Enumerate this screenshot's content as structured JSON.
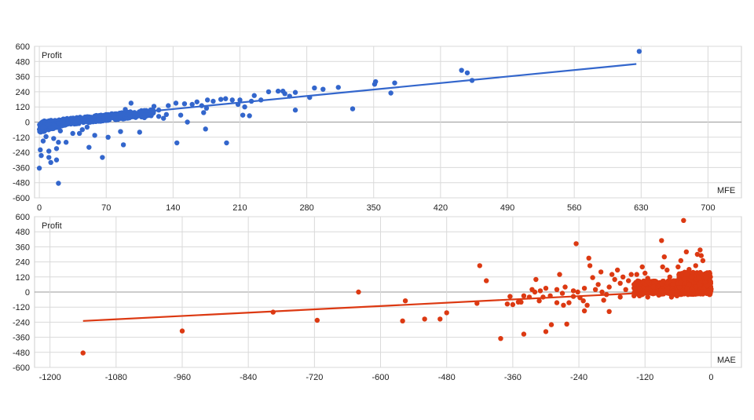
{
  "colors": {
    "mfe": "#3366cc",
    "mae": "#dc3912",
    "grid": "#d9d9d9",
    "axis": "#999999",
    "frame": "#cccccc"
  },
  "chart_data": [
    {
      "type": "scatter",
      "title": "",
      "xlabel": "MFE",
      "ylabel": "Profit",
      "xlim": [
        -5,
        735
      ],
      "ylim": [
        -600,
        600
      ],
      "xticks": [
        0,
        70,
        140,
        210,
        280,
        350,
        420,
        490,
        560,
        630,
        700
      ],
      "yticks": [
        -600,
        -480,
        -360,
        -240,
        -120,
        0,
        120,
        240,
        360,
        480,
        600
      ],
      "grid": true,
      "trendline": {
        "x": [
          0,
          625
        ],
        "y": [
          0,
          460
        ]
      },
      "outliers": [
        [
          628,
          560
        ],
        [
          442,
          410
        ],
        [
          448,
          390
        ],
        [
          453,
          330
        ],
        [
          372,
          310
        ],
        [
          352,
          320
        ],
        [
          368,
          230
        ],
        [
          351,
          300
        ],
        [
          328,
          105
        ],
        [
          313,
          275
        ],
        [
          297,
          260
        ],
        [
          288,
          270
        ],
        [
          283,
          195
        ],
        [
          268,
          235
        ],
        [
          268,
          95
        ],
        [
          262,
          205
        ],
        [
          257,
          225
        ],
        [
          255,
          245
        ],
        [
          250,
          245
        ],
        [
          240,
          240
        ],
        [
          232,
          175
        ],
        [
          225,
          210
        ],
        [
          222,
          165
        ],
        [
          215,
          120
        ],
        [
          213,
          55
        ],
        [
          210,
          175
        ],
        [
          208,
          140
        ],
        [
          220,
          50
        ],
        [
          195,
          185
        ],
        [
          190,
          180
        ],
        [
          202,
          175
        ],
        [
          182,
          165
        ],
        [
          176,
          175
        ],
        [
          175,
          110
        ],
        [
          172,
          75
        ],
        [
          170,
          130
        ],
        [
          165,
          160
        ],
        [
          160,
          140
        ],
        [
          152,
          145
        ],
        [
          148,
          55
        ],
        [
          155,
          0
        ],
        [
          143,
          150
        ],
        [
          135,
          130
        ],
        [
          130,
          30
        ],
        [
          125,
          95
        ],
        [
          120,
          125
        ],
        [
          110,
          35
        ],
        [
          100,
          70
        ],
        [
          96,
          150
        ],
        [
          90,
          100
        ],
        [
          88,
          -180
        ],
        [
          85,
          -75
        ],
        [
          78,
          45
        ],
        [
          72,
          -120
        ],
        [
          63,
          20
        ],
        [
          55,
          10
        ],
        [
          58,
          -105
        ],
        [
          50,
          -40
        ],
        [
          45,
          -60
        ],
        [
          52,
          -200
        ],
        [
          42,
          -90
        ],
        [
          35,
          -90
        ],
        [
          33,
          30
        ],
        [
          30,
          -10
        ],
        [
          28,
          -160
        ],
        [
          25,
          -20
        ],
        [
          22,
          -70
        ],
        [
          20,
          -160
        ],
        [
          18,
          -210
        ],
        [
          15,
          -130
        ],
        [
          13,
          -45
        ],
        [
          12,
          -320
        ],
        [
          10,
          -230
        ],
        [
          7,
          -115
        ],
        [
          4,
          -150
        ],
        [
          2,
          -265
        ],
        [
          1,
          -220
        ],
        [
          0,
          -365
        ],
        [
          18,
          -300
        ],
        [
          20,
          -485
        ],
        [
          10,
          -280
        ],
        [
          105,
          -80
        ],
        [
          144,
          -165
        ],
        [
          196,
          -165
        ],
        [
          174,
          -55
        ],
        [
          66,
          -280
        ],
        [
          125,
          45
        ],
        [
          133,
          60
        ],
        [
          110,
          90
        ]
      ],
      "bulk": [
        {
          "x0": 0,
          "x1": 120,
          "y0": -20,
          "y1": 100,
          "n": 520
        },
        {
          "x0": 0,
          "x1": 30,
          "y0": -60,
          "y1": 25,
          "n": 180
        }
      ]
    },
    {
      "type": "scatter",
      "title": "",
      "xlabel": "MAE",
      "ylabel": "Profit",
      "xlim": [
        -1228,
        55
      ],
      "ylim": [
        -600,
        600
      ],
      "xticks": [
        -1200,
        -1080,
        -960,
        -840,
        -720,
        -600,
        -480,
        -360,
        -240,
        -120,
        0
      ],
      "yticks": [
        -600,
        -480,
        -360,
        -240,
        -120,
        0,
        120,
        240,
        360,
        480,
        600
      ],
      "grid": true,
      "trendline": {
        "x": [
          -1140,
          0
        ],
        "y": [
          -230,
          20
        ]
      },
      "outliers": [
        [
          -1140,
          -485
        ],
        [
          -960,
          -310
        ],
        [
          -795,
          -160
        ],
        [
          -715,
          -225
        ],
        [
          -640,
          0
        ],
        [
          -555,
          -70
        ],
        [
          -560,
          -230
        ],
        [
          -520,
          -215
        ],
        [
          -492,
          -215
        ],
        [
          -480,
          -165
        ],
        [
          -420,
          210
        ],
        [
          -425,
          -90
        ],
        [
          -408,
          90
        ],
        [
          -382,
          -370
        ],
        [
          -370,
          -95
        ],
        [
          -365,
          -35
        ],
        [
          -360,
          -100
        ],
        [
          -350,
          -80
        ],
        [
          -340,
          -335
        ],
        [
          -345,
          -80
        ],
        [
          -330,
          -40
        ],
        [
          -325,
          20
        ],
        [
          -318,
          100
        ],
        [
          -312,
          -70
        ],
        [
          -310,
          10
        ],
        [
          -305,
          -40
        ],
        [
          -300,
          -315
        ],
        [
          -292,
          -30
        ],
        [
          -290,
          -260
        ],
        [
          -280,
          20
        ],
        [
          -275,
          140
        ],
        [
          -280,
          -85
        ],
        [
          -268,
          -105
        ],
        [
          -265,
          40
        ],
        [
          -262,
          -255
        ],
        [
          -258,
          -85
        ],
        [
          -250,
          -35
        ],
        [
          -245,
          385
        ],
        [
          -242,
          0
        ],
        [
          -238,
          -45
        ],
        [
          -232,
          -70
        ],
        [
          -230,
          -150
        ],
        [
          -225,
          -105
        ],
        [
          -222,
          270
        ],
        [
          -220,
          210
        ],
        [
          -215,
          115
        ],
        [
          -210,
          20
        ],
        [
          -200,
          160
        ],
        [
          -198,
          0
        ],
        [
          -195,
          -65
        ],
        [
          -190,
          -20
        ],
        [
          -185,
          -155
        ],
        [
          -180,
          140
        ],
        [
          -175,
          100
        ],
        [
          -170,
          175
        ],
        [
          -165,
          70
        ],
        [
          -160,
          120
        ],
        [
          -155,
          20
        ],
        [
          -150,
          90
        ],
        [
          -145,
          140
        ],
        [
          -140,
          60
        ],
        [
          -135,
          140
        ],
        [
          -130,
          -30
        ],
        [
          -125,
          200
        ],
        [
          -120,
          150
        ],
        [
          -115,
          110
        ],
        [
          -110,
          30
        ],
        [
          -105,
          40
        ],
        [
          -100,
          80
        ],
        [
          -95,
          -10
        ],
        [
          -90,
          410
        ],
        [
          -88,
          200
        ],
        [
          -85,
          280
        ],
        [
          -80,
          175
        ],
        [
          -75,
          120
        ],
        [
          -70,
          60
        ],
        [
          -60,
          200
        ],
        [
          -55,
          250
        ],
        [
          -50,
          570
        ],
        [
          -45,
          320
        ],
        [
          -40,
          180
        ],
        [
          -35,
          120
        ],
        [
          -28,
          210
        ],
        [
          -25,
          300
        ],
        [
          -20,
          335
        ],
        [
          -18,
          290
        ],
        [
          -15,
          250
        ],
        [
          -10,
          110
        ],
        [
          -42,
          -20
        ],
        [
          -62,
          -30
        ],
        [
          -72,
          -40
        ],
        [
          -95,
          -25
        ],
        [
          -115,
          -40
        ],
        [
          -140,
          -30
        ],
        [
          -165,
          -40
        ],
        [
          -185,
          40
        ],
        [
          -205,
          60
        ],
        [
          -230,
          30
        ],
        [
          -250,
          10
        ],
        [
          -270,
          -10
        ],
        [
          -300,
          30
        ],
        [
          -320,
          0
        ],
        [
          -340,
          -30
        ]
      ],
      "bulk": [
        {
          "x0": -140,
          "x1": 0,
          "y0": -20,
          "y1": 90,
          "n": 520
        },
        {
          "x0": -60,
          "x1": 0,
          "y0": 0,
          "y1": 160,
          "n": 180
        }
      ]
    }
  ]
}
